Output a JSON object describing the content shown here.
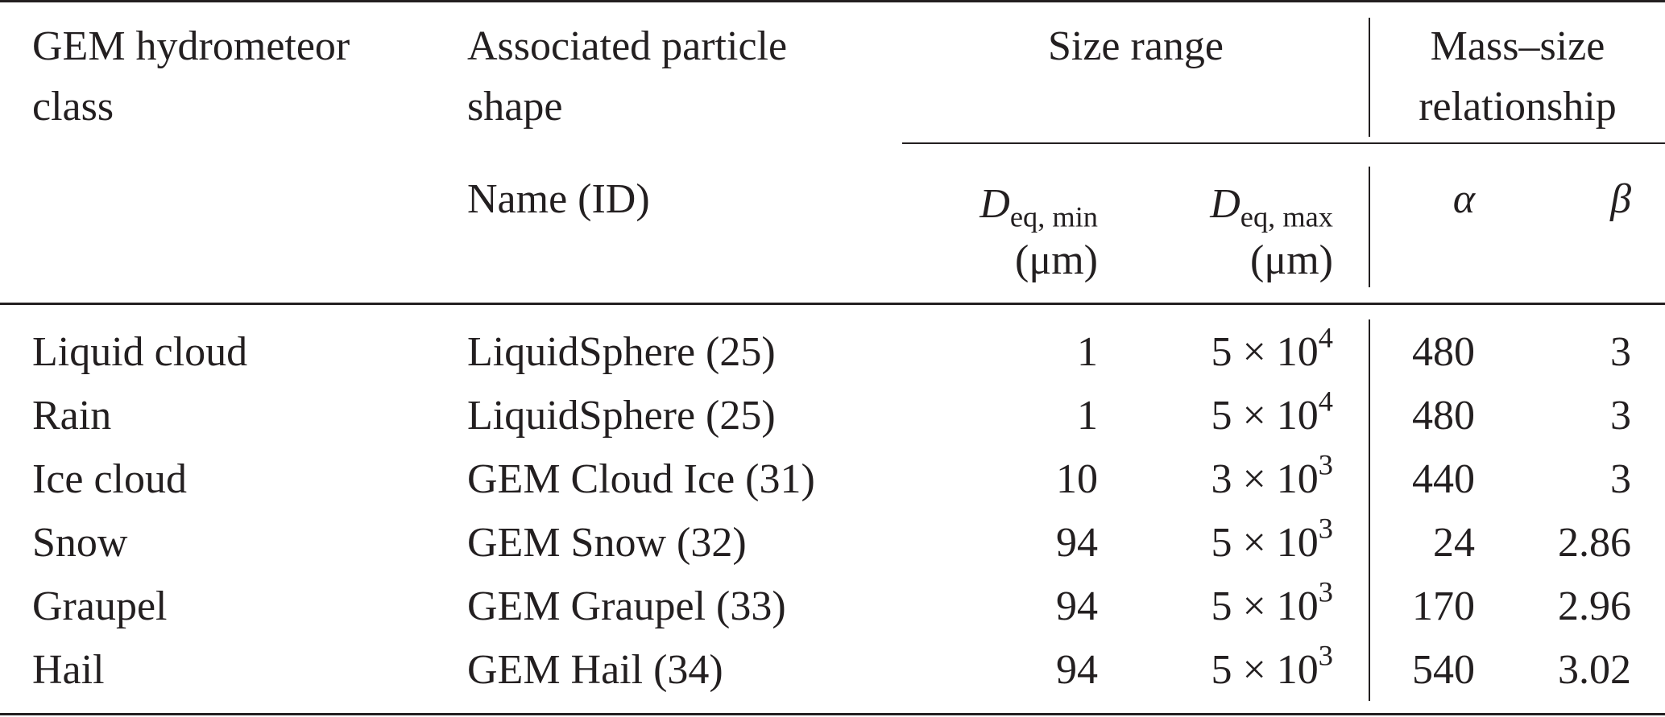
{
  "header": {
    "class_line1": "GEM hydrometeor",
    "class_line2": "class",
    "shape_line1": "Associated particle",
    "shape_line2": "shape",
    "size_range": "Size range",
    "mass_line1": "Mass–size",
    "mass_line2": "relationship",
    "name_id": "Name (ID)",
    "dmin_symbol": "D",
    "dmin_sub": "eq, min",
    "dmax_symbol": "D",
    "dmax_sub": "eq, max",
    "unit": "(μm)",
    "alpha": "α",
    "beta": "β"
  },
  "rows": [
    {
      "cls": "Liquid cloud",
      "shape": "LiquidSphere (25)",
      "dmin": "1",
      "dmax_base": "5 × 10",
      "dmax_exp": "4",
      "alpha": "480",
      "beta": "3"
    },
    {
      "cls": "Rain",
      "shape": "LiquidSphere (25)",
      "dmin": "1",
      "dmax_base": "5 × 10",
      "dmax_exp": "4",
      "alpha": "480",
      "beta": "3"
    },
    {
      "cls": "Ice cloud",
      "shape": "GEM Cloud Ice (31)",
      "dmin": "10",
      "dmax_base": "3 × 10",
      "dmax_exp": "3",
      "alpha": "440",
      "beta": "3"
    },
    {
      "cls": "Snow",
      "shape": "GEM Snow (32)",
      "dmin": "94",
      "dmax_base": "5 × 10",
      "dmax_exp": "3",
      "alpha": "24",
      "beta": "2.86"
    },
    {
      "cls": "Graupel",
      "shape": "GEM Graupel (33)",
      "dmin": "94",
      "dmax_base": "5 × 10",
      "dmax_exp": "3",
      "alpha": "170",
      "beta": "2.96"
    },
    {
      "cls": "Hail",
      "shape": "GEM Hail (34)",
      "dmin": "94",
      "dmax_base": "5 × 10",
      "dmax_exp": "3",
      "alpha": "540",
      "beta": "3.02"
    }
  ]
}
